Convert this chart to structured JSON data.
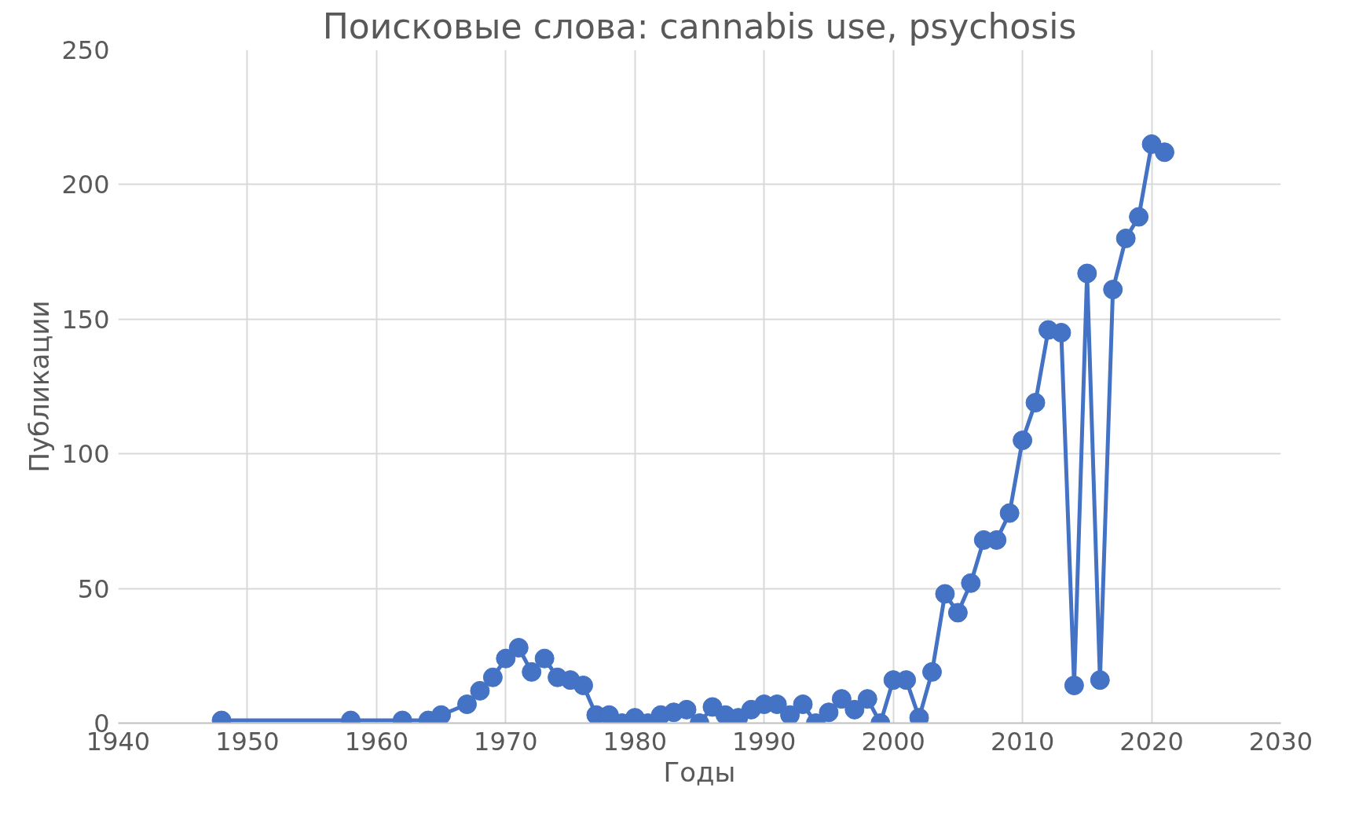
{
  "chart_data": {
    "type": "line",
    "title": "Поисковые слова: cannabis use, psychosis",
    "xlabel": "Годы",
    "ylabel": "Публикации",
    "x": [
      1948,
      1958,
      1962,
      1964,
      1965,
      1967,
      1968,
      1969,
      1970,
      1971,
      1972,
      1973,
      1974,
      1975,
      1976,
      1977,
      1978,
      1979,
      1980,
      1981,
      1982,
      1983,
      1984,
      1985,
      1986,
      1987,
      1988,
      1989,
      1990,
      1991,
      1992,
      1993,
      1994,
      1995,
      1996,
      1997,
      1998,
      1999,
      2000,
      2001,
      2002,
      2003,
      2004,
      2005,
      2006,
      2007,
      2008,
      2009,
      2010,
      2011,
      2012,
      2013,
      2014,
      2015,
      2016,
      2017,
      2018,
      2019,
      2020,
      2021
    ],
    "series": [
      {
        "color": "#4472c4",
        "values": [
          1,
          1,
          1,
          1,
          3,
          7,
          12,
          17,
          24,
          28,
          19,
          24,
          17,
          16,
          14,
          3,
          3,
          0,
          2,
          0,
          3,
          4,
          5,
          0,
          6,
          3,
          2,
          5,
          7,
          7,
          3,
          7,
          0,
          4,
          9,
          5,
          9,
          0,
          16,
          16,
          2,
          19,
          48,
          41,
          52,
          68,
          68,
          78,
          105,
          119,
          146,
          145,
          14,
          167,
          16,
          161,
          180,
          188,
          215,
          212
        ]
      }
    ],
    "xlim": [
      1940,
      2030
    ],
    "xticks": [
      1940,
      1950,
      1960,
      1970,
      1980,
      1990,
      2000,
      2010,
      2020,
      2030
    ],
    "ylim": [
      0,
      250
    ],
    "yticks": [
      0,
      50,
      100,
      150,
      200,
      250
    ],
    "grid": true,
    "marker": "circle",
    "line_style": "solid"
  }
}
